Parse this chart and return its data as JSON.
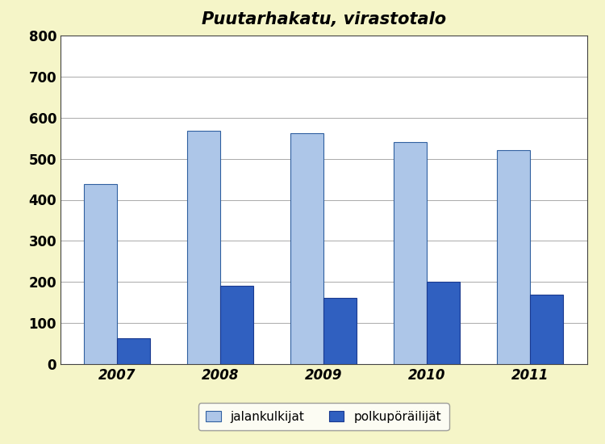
{
  "title": "Puutarhakatu, virastotalo",
  "years": [
    "2007",
    "2008",
    "2009",
    "2010",
    "2011"
  ],
  "jalankulkijat": [
    438,
    568,
    562,
    541,
    521
  ],
  "polkupyorailijat": [
    62,
    190,
    161,
    201,
    170
  ],
  "color_jalan": "#adc6e8",
  "color_polku": "#3060c0",
  "color_jalan_edge": "#3060a0",
  "color_polku_edge": "#1a3a90",
  "ylim": [
    0,
    800
  ],
  "yticks": [
    0,
    100,
    200,
    300,
    400,
    500,
    600,
    700,
    800
  ],
  "legend_jalan": "jalankulkijat",
  "legend_polku": "polkupöräilijät",
  "background_color": "#f5f5c8",
  "plot_background": "#ffffff",
  "title_fontsize": 15,
  "tick_fontsize": 12,
  "legend_fontsize": 11,
  "bar_width": 0.32
}
